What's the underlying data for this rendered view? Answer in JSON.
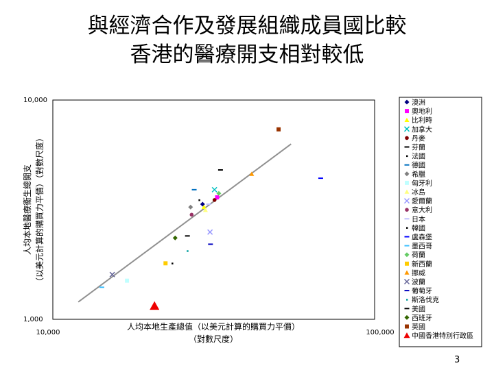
{
  "slide": {
    "title_line1": "與經濟合作及發展組織成員國比較",
    "title_line2": "香港的醫療開支相對較低",
    "page_number": "3"
  },
  "chart_data": {
    "type": "scatter",
    "title": "",
    "xlabel": [
      "人均本地生產總值（以美元計算的購買力平價）",
      "（對數尺度）"
    ],
    "ylabel": [
      "人均本地醫療衞生總開支",
      "（以美元計算的購買力平價）（對數尺度）"
    ],
    "x_scale": "log",
    "y_scale": "log",
    "xlim": [
      10000,
      100000
    ],
    "ylim": [
      1000,
      10000
    ],
    "x_tick_labels": [
      "10,000",
      "100,000"
    ],
    "y_tick_labels": [
      "1,000",
      "10,000"
    ],
    "grid": false,
    "legend_position": "right",
    "trendline": {
      "x": [
        12000,
        55000
      ],
      "y": [
        1200,
        6300
      ],
      "color": "#909090"
    },
    "series": [
      {
        "name": "澳洲",
        "marker": "diamond",
        "color": "#000080",
        "x": [
          29200
        ],
        "y": [
          3350
        ]
      },
      {
        "name": "奧地利",
        "marker": "square",
        "color": "#ff00ff",
        "x": [
          32400
        ],
        "y": [
          3600
        ]
      },
      {
        "name": "比利時",
        "marker": "triangle",
        "color": "#ffff00",
        "x": [
          29500
        ],
        "y": [
          3250
        ]
      },
      {
        "name": "加拿大",
        "marker": "x",
        "color": "#00c0c0",
        "x": [
          31800
        ],
        "y": [
          3900
        ]
      },
      {
        "name": "丹麥",
        "marker": "circle",
        "color": "#800000",
        "x": [
          31800
        ],
        "y": [
          3500
        ]
      },
      {
        "name": "芬蘭",
        "marker": "dash",
        "color": "#000000",
        "x": [
          33200
        ],
        "y": [
          4800
        ]
      },
      {
        "name": "法國",
        "marker": "dot",
        "color": "#000000",
        "x": [
          28500
        ],
        "y": [
          3500
        ]
      },
      {
        "name": "德國",
        "marker": "dash",
        "color": "#0070c0",
        "x": [
          27500
        ],
        "y": [
          3900
        ]
      },
      {
        "name": "希臘",
        "marker": "diamond",
        "color": "#808080",
        "x": [
          26800
        ],
        "y": [
          3250
        ]
      },
      {
        "name": "匈牙利",
        "marker": "square",
        "color": "#c0ffff",
        "x": [
          17000
        ],
        "y": [
          1500
        ]
      },
      {
        "name": "冰島",
        "marker": "triangle",
        "color": "#ffff80",
        "x": [
          29800
        ],
        "y": [
          3150
        ]
      },
      {
        "name": "愛爾蘭",
        "marker": "x",
        "color": "#9999ff",
        "x": [
          30800
        ],
        "y": [
          2500
        ]
      },
      {
        "name": "意大利",
        "marker": "circle",
        "color": "#993366",
        "x": [
          27000
        ],
        "y": [
          3000
        ]
      },
      {
        "name": "日本",
        "marker": "dash",
        "color": "#c0c0ff",
        "x": [
          30500
        ],
        "y": [
          3350
        ]
      },
      {
        "name": "韓國",
        "marker": "dot",
        "color": "#000000",
        "x": [
          23500
        ],
        "y": [
          1800
        ]
      },
      {
        "name": "盧森堡",
        "marker": "dash",
        "color": "#0000ff",
        "x": [
          68000
        ],
        "y": [
          4400
        ]
      },
      {
        "name": "墨西哥",
        "marker": "dash",
        "color": "#40c0ff",
        "x": [
          14200
        ],
        "y": [
          1400
        ]
      },
      {
        "name": "荷蘭",
        "marker": "diamond",
        "color": "#66cc66",
        "x": [
          32800
        ],
        "y": [
          3750
        ]
      },
      {
        "name": "新西蘭",
        "marker": "square",
        "color": "#ffcc00",
        "x": [
          22400
        ],
        "y": [
          1800
        ]
      },
      {
        "name": "挪威",
        "marker": "triangle",
        "color": "#ff9900",
        "x": [
          41500
        ],
        "y": [
          4600
        ]
      },
      {
        "name": "波蘭",
        "marker": "x",
        "color": "#666699",
        "x": [
          15300
        ],
        "y": [
          1600
        ]
      },
      {
        "name": "葡萄牙",
        "marker": "dash",
        "color": "#0000c0",
        "x": [
          30900
        ],
        "y": [
          2200
        ]
      },
      {
        "name": "斯洛伐克",
        "marker": "dot",
        "color": "#00a0a0",
        "x": [
          26200
        ],
        "y": [
          2050
        ]
      },
      {
        "name": "美國",
        "marker": "dash",
        "color": "#000000",
        "x": [
          26200
        ],
        "y": [
          2400
        ]
      },
      {
        "name": "西班牙",
        "marker": "diamond",
        "color": "#336600",
        "x": [
          24000
        ],
        "y": [
          2350
        ]
      },
      {
        "name": "英國",
        "marker": "square",
        "color": "#993300",
        "x": [
          50300
        ],
        "y": [
          7350
        ]
      },
      {
        "name": "中國香港特別行政區",
        "marker": "triangle",
        "color": "#ee0000",
        "x": [
          20700
        ],
        "y": [
          1150
        ],
        "highlight": true
      }
    ]
  }
}
